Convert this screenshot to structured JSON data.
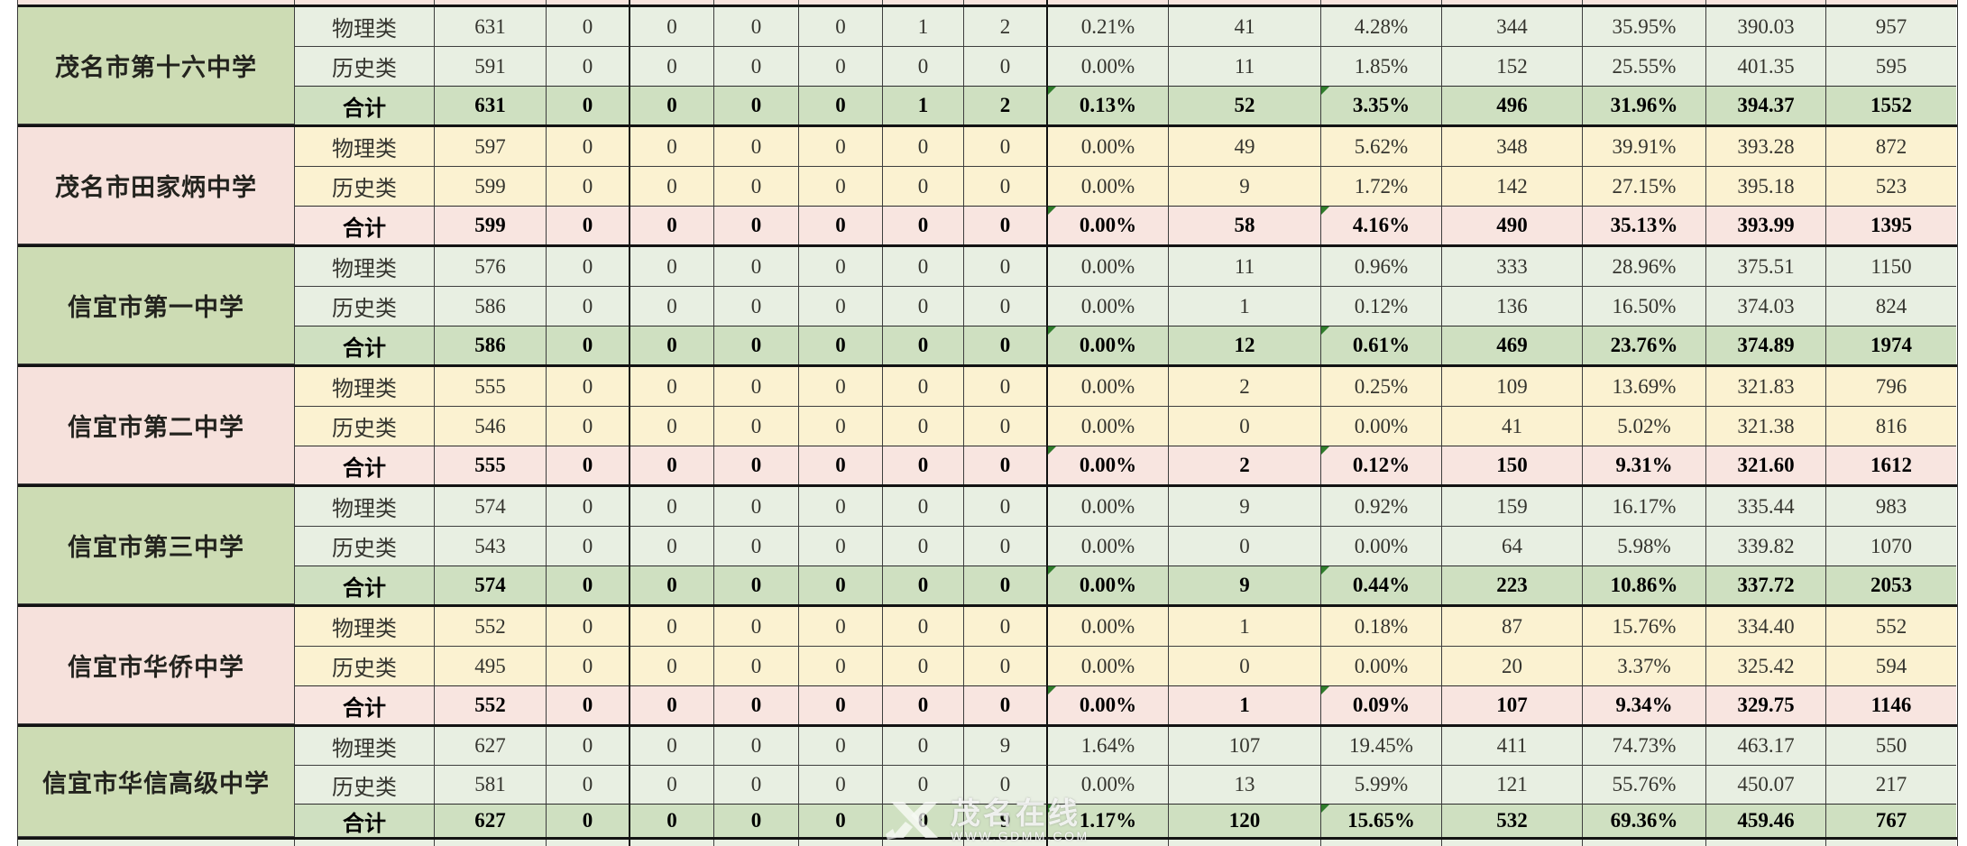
{
  "table": {
    "description_labels": {
      "physics": "物理类",
      "history": "历史类",
      "total": "合计"
    },
    "schools": [
      {
        "name": "茂名市第十六中学",
        "theme": "green",
        "rows": [
          {
            "label": "物理类",
            "values": [
              "631",
              "0",
              "0",
              "0",
              "0",
              "1",
              "2",
              "0.21%",
              "41",
              "4.28%",
              "344",
              "35.95%",
              "390.03",
              "957"
            ]
          },
          {
            "label": "历史类",
            "values": [
              "591",
              "0",
              "0",
              "0",
              "0",
              "0",
              "0",
              "0.00%",
              "11",
              "1.85%",
              "152",
              "25.55%",
              "401.35",
              "595"
            ]
          },
          {
            "label": "合计",
            "values": [
              "631",
              "0",
              "0",
              "0",
              "0",
              "1",
              "2",
              "0.13%",
              "52",
              "3.35%",
              "496",
              "31.96%",
              "394.37",
              "1552"
            ]
          }
        ]
      },
      {
        "name": "茂名市田家炳中学",
        "theme": "pink",
        "rows": [
          {
            "label": "物理类",
            "values": [
              "597",
              "0",
              "0",
              "0",
              "0",
              "0",
              "0",
              "0.00%",
              "49",
              "5.62%",
              "348",
              "39.91%",
              "393.28",
              "872"
            ]
          },
          {
            "label": "历史类",
            "values": [
              "599",
              "0",
              "0",
              "0",
              "0",
              "0",
              "0",
              "0.00%",
              "9",
              "1.72%",
              "142",
              "27.15%",
              "395.18",
              "523"
            ]
          },
          {
            "label": "合计",
            "values": [
              "599",
              "0",
              "0",
              "0",
              "0",
              "0",
              "0",
              "0.00%",
              "58",
              "4.16%",
              "490",
              "35.13%",
              "393.99",
              "1395"
            ]
          }
        ]
      },
      {
        "name": "信宜市第一中学",
        "theme": "green",
        "rows": [
          {
            "label": "物理类",
            "values": [
              "576",
              "0",
              "0",
              "0",
              "0",
              "0",
              "0",
              "0.00%",
              "11",
              "0.96%",
              "333",
              "28.96%",
              "375.51",
              "1150"
            ]
          },
          {
            "label": "历史类",
            "values": [
              "586",
              "0",
              "0",
              "0",
              "0",
              "0",
              "0",
              "0.00%",
              "1",
              "0.12%",
              "136",
              "16.50%",
              "374.03",
              "824"
            ]
          },
          {
            "label": "合计",
            "values": [
              "586",
              "0",
              "0",
              "0",
              "0",
              "0",
              "0",
              "0.00%",
              "12",
              "0.61%",
              "469",
              "23.76%",
              "374.89",
              "1974"
            ]
          }
        ]
      },
      {
        "name": "信宜市第二中学",
        "theme": "pink",
        "rows": [
          {
            "label": "物理类",
            "values": [
              "555",
              "0",
              "0",
              "0",
              "0",
              "0",
              "0",
              "0.00%",
              "2",
              "0.25%",
              "109",
              "13.69%",
              "321.83",
              "796"
            ]
          },
          {
            "label": "历史类",
            "values": [
              "546",
              "0",
              "0",
              "0",
              "0",
              "0",
              "0",
              "0.00%",
              "0",
              "0.00%",
              "41",
              "5.02%",
              "321.38",
              "816"
            ]
          },
          {
            "label": "合计",
            "values": [
              "555",
              "0",
              "0",
              "0",
              "0",
              "0",
              "0",
              "0.00%",
              "2",
              "0.12%",
              "150",
              "9.31%",
              "321.60",
              "1612"
            ]
          }
        ]
      },
      {
        "name": "信宜市第三中学",
        "theme": "green",
        "rows": [
          {
            "label": "物理类",
            "values": [
              "574",
              "0",
              "0",
              "0",
              "0",
              "0",
              "0",
              "0.00%",
              "9",
              "0.92%",
              "159",
              "16.17%",
              "335.44",
              "983"
            ]
          },
          {
            "label": "历史类",
            "values": [
              "543",
              "0",
              "0",
              "0",
              "0",
              "0",
              "0",
              "0.00%",
              "0",
              "0.00%",
              "64",
              "5.98%",
              "339.82",
              "1070"
            ]
          },
          {
            "label": "合计",
            "values": [
              "574",
              "0",
              "0",
              "0",
              "0",
              "0",
              "0",
              "0.00%",
              "9",
              "0.44%",
              "223",
              "10.86%",
              "337.72",
              "2053"
            ]
          }
        ]
      },
      {
        "name": "信宜市华侨中学",
        "theme": "pink",
        "rows": [
          {
            "label": "物理类",
            "values": [
              "552",
              "0",
              "0",
              "0",
              "0",
              "0",
              "0",
              "0.00%",
              "1",
              "0.18%",
              "87",
              "15.76%",
              "334.40",
              "552"
            ]
          },
          {
            "label": "历史类",
            "values": [
              "495",
              "0",
              "0",
              "0",
              "0",
              "0",
              "0",
              "0.00%",
              "0",
              "0.00%",
              "20",
              "3.37%",
              "325.42",
              "594"
            ]
          },
          {
            "label": "合计",
            "values": [
              "552",
              "0",
              "0",
              "0",
              "0",
              "0",
              "0",
              "0.00%",
              "1",
              "0.09%",
              "107",
              "9.34%",
              "329.75",
              "1146"
            ]
          }
        ]
      },
      {
        "name": "信宜市华信高级中学",
        "theme": "green",
        "rows": [
          {
            "label": "物理类",
            "values": [
              "627",
              "0",
              "0",
              "0",
              "0",
              "0",
              "9",
              "1.64%",
              "107",
              "19.45%",
              "411",
              "74.73%",
              "463.17",
              "550"
            ]
          },
          {
            "label": "历史类",
            "values": [
              "581",
              "0",
              "0",
              "0",
              "0",
              "0",
              "0",
              "0.00%",
              "13",
              "5.99%",
              "121",
              "55.76%",
              "450.07",
              "217"
            ]
          },
          {
            "label": "合计",
            "values": [
              "627",
              "0",
              "0",
              "0",
              "0",
              "0",
              "9",
              "1.17%",
              "120",
              "15.65%",
              "532",
              "69.36%",
              "459.46",
              "767"
            ]
          }
        ]
      }
    ]
  },
  "watermark": {
    "site_name": "茂名在线",
    "site_url": "WWW.GDMM.COM"
  },
  "colors": {
    "green_name": "#cddcb4",
    "green_row": "#e8efe2",
    "green_total": "#cfe0c1",
    "pink_name": "#f6e1dc",
    "pink_row": "#fbf2d1",
    "pink_total": "#f8e5e0",
    "top_sliver": "#f8e4de",
    "bottom_sliver": "#e9f0e3",
    "thin_border": "#3e3e3e",
    "thick_border": "#131313",
    "error_triangle": "#2f7d2b"
  }
}
